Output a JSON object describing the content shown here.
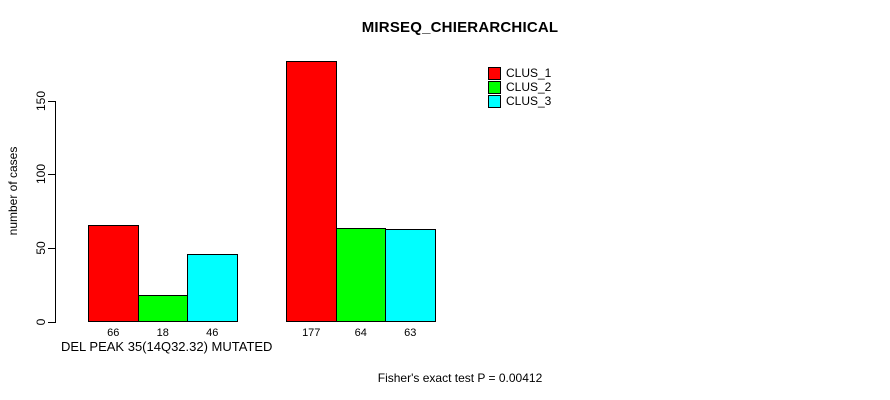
{
  "chart_data": {
    "type": "bar",
    "title": "MIRSEQ_CHIERARCHICAL",
    "ylabel": "number of cases",
    "xlabel": "DEL PEAK 35(14Q32.32) MUTATED",
    "footnote": "Fisher's exact test P = 0.00412",
    "series": [
      {
        "name": "CLUS_1",
        "color": "#ff0000",
        "values": [
          66,
          177
        ]
      },
      {
        "name": "CLUS_2",
        "color": "#00ff00",
        "values": [
          18,
          64
        ]
      },
      {
        "name": "CLUS_3",
        "color": "#00ffff",
        "values": [
          46,
          63
        ]
      }
    ],
    "group_count": 2,
    "bar_value_labels": [
      [
        66,
        18,
        46
      ],
      [
        177,
        64,
        63
      ]
    ],
    "yticks": [
      0,
      50,
      100,
      150
    ],
    "ylim": [
      0,
      180
    ],
    "grid": false,
    "legend_position": "top-right",
    "axis_color": "#000000",
    "background_color": "#ffffff"
  }
}
